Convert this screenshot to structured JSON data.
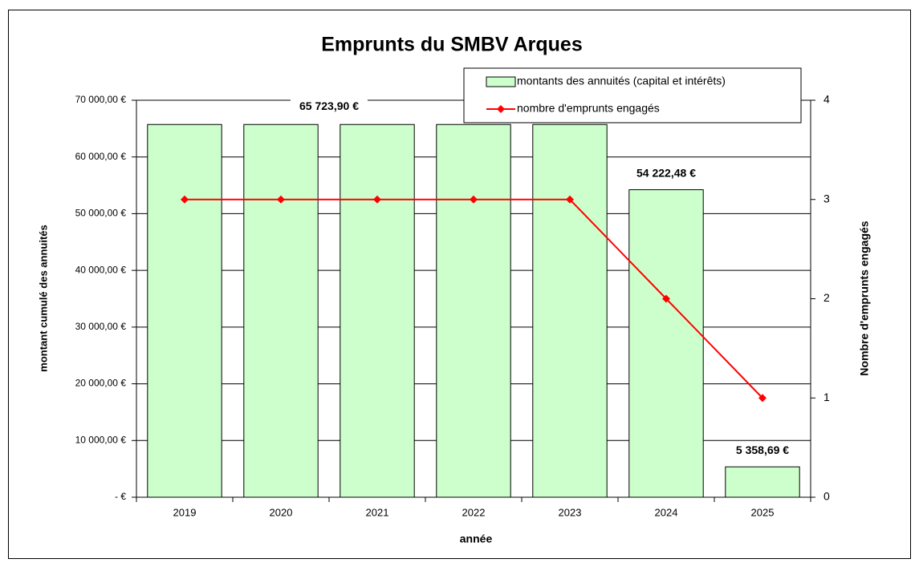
{
  "chart_data": {
    "type": "bar",
    "title": "Emprunts du SMBV Arques",
    "x_label": "année",
    "y_label": "montant cumulé des annuités",
    "y2_label": "Nombre d'emprunts engagés",
    "categories": [
      "2019",
      "2020",
      "2021",
      "2022",
      "2023",
      "2024",
      "2025"
    ],
    "series": [
      {
        "name": "montants des annuités (capital et intérêts)",
        "type": "bar",
        "color": "#ccffcc",
        "values": [
          65723.9,
          65723.9,
          65723.9,
          65723.9,
          65723.9,
          54222.48,
          5358.69
        ],
        "value_labels": [
          null,
          "65 723,90 €",
          null,
          null,
          null,
          "54 222,48 €",
          "5 358,69 €"
        ]
      },
      {
        "name": "nombre d'emprunts engagés",
        "type": "line",
        "color": "#ff0000",
        "axis": "y2",
        "values": [
          3,
          3,
          3,
          3,
          3,
          2,
          1
        ]
      }
    ],
    "ylim": [
      0,
      70000
    ],
    "yticks": [
      {
        "value": 0,
        "label": "- €"
      },
      {
        "value": 10000,
        "label": "10 000,00 €"
      },
      {
        "value": 20000,
        "label": "20 000,00 €"
      },
      {
        "value": 30000,
        "label": "30 000,00 €"
      },
      {
        "value": 40000,
        "label": "40 000,00 €"
      },
      {
        "value": 50000,
        "label": "50 000,00 €"
      },
      {
        "value": 60000,
        "label": "60 000,00 €"
      },
      {
        "value": 70000,
        "label": "70 000,00 €"
      }
    ],
    "y2lim": [
      0,
      4
    ],
    "y2ticks": [
      0,
      1,
      2,
      3,
      4
    ],
    "grid": true,
    "legend": "top-right"
  }
}
